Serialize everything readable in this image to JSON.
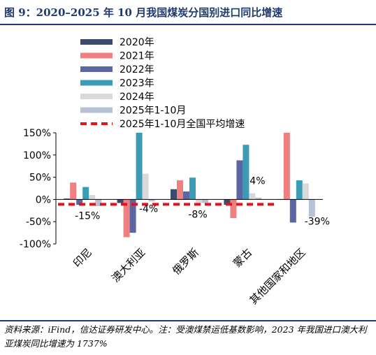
{
  "title": "图 9：2020–2025 年 10 月我国煤炭分国别进口同比增速",
  "source_note": "资料来源：iFind，信达证券研发中心。注：受澳煤禁运低基数影响，2023 年我国进口澳大利亚煤炭同比增速为 1737%",
  "chart_data": {
    "type": "bar",
    "categories": [
      "印尼",
      "澳大利亚",
      "俄罗斯",
      "蒙古",
      "其他国家和地区"
    ],
    "series": [
      {
        "name": "2020年",
        "color": "#3c4a6b",
        "values": [
          2,
          -8,
          23,
          -12,
          0
        ]
      },
      {
        "name": "2021年",
        "color": "#f08080",
        "values": [
          38,
          -85,
          43,
          -42,
          150
        ]
      },
      {
        "name": "2022年",
        "color": "#5a67a3",
        "values": [
          -12,
          -75,
          18,
          88,
          -52
        ]
      },
      {
        "name": "2023年",
        "color": "#3b9cb6",
        "values": [
          28,
          150,
          49,
          123,
          43
        ]
      },
      {
        "name": "2024年",
        "color": "#d9d9d9",
        "values": [
          10,
          58,
          -8,
          14,
          36
        ]
      },
      {
        "name": "2025年1-10月",
        "color": "#b8c2d6",
        "values": [
          -15,
          -4,
          -8,
          4,
          -39
        ]
      }
    ],
    "reference_line": {
      "name": "2025年1-10月全国平均增速",
      "color": "#e8111b",
      "value": -11,
      "style": "dashed"
    },
    "annotations": [
      {
        "category_index": 0,
        "text": "-15%"
      },
      {
        "category_index": 1,
        "text": "-4%"
      },
      {
        "category_index": 2,
        "text": "-8%"
      },
      {
        "category_index": 3,
        "text": "4%"
      },
      {
        "category_index": 4,
        "text": "-39%"
      }
    ],
    "yticks": [
      "150%",
      "100%",
      "50%",
      "0%",
      "-50%",
      "-100%"
    ],
    "ytick_values": [
      150,
      100,
      50,
      0,
      -50,
      -100
    ],
    "ylim": [
      -100,
      150
    ],
    "legend_position": "top-left"
  }
}
